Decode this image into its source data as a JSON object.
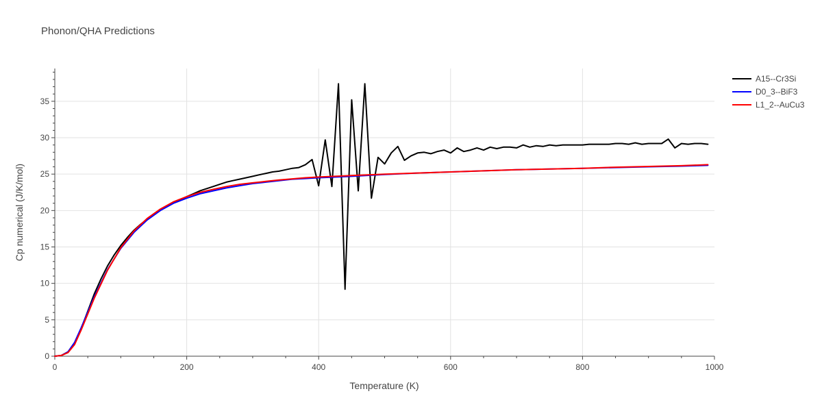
{
  "chart_data": {
    "type": "line",
    "title": "Phonon/QHA Predictions",
    "xlabel": "Temperature (K)",
    "ylabel": "Cp numerical (J/K/mol)",
    "xlim": [
      0,
      1000
    ],
    "ylim": [
      0,
      39.5
    ],
    "xticks": [
      0,
      200,
      400,
      600,
      800,
      1000
    ],
    "yticks": [
      0,
      5,
      10,
      15,
      20,
      25,
      30,
      35
    ],
    "grid": true,
    "legend": "top-right",
    "series": [
      {
        "name": "A15--Cr3Si",
        "color": "#000000",
        "x": [
          0,
          10,
          20,
          30,
          40,
          50,
          60,
          70,
          80,
          90,
          100,
          110,
          120,
          130,
          140,
          150,
          160,
          170,
          180,
          190,
          200,
          210,
          220,
          230,
          240,
          250,
          260,
          270,
          280,
          290,
          300,
          310,
          320,
          330,
          340,
          350,
          360,
          370,
          380,
          390,
          400,
          410,
          420,
          430,
          440,
          450,
          460,
          470,
          480,
          490,
          500,
          510,
          520,
          530,
          540,
          550,
          560,
          570,
          580,
          590,
          600,
          610,
          620,
          630,
          640,
          650,
          660,
          670,
          680,
          690,
          700,
          710,
          720,
          730,
          740,
          750,
          760,
          770,
          780,
          790,
          800,
          810,
          820,
          830,
          840,
          850,
          860,
          870,
          880,
          890,
          900,
          910,
          920,
          930,
          940,
          950,
          960,
          970,
          980,
          990
        ],
        "y": [
          0,
          0.1,
          0.6,
          1.8,
          3.8,
          6.2,
          8.6,
          10.6,
          12.4,
          13.9,
          15.2,
          16.3,
          17.3,
          18.1,
          18.8,
          19.5,
          20.1,
          20.6,
          21.1,
          21.5,
          21.9,
          22.3,
          22.7,
          23.0,
          23.3,
          23.6,
          23.9,
          24.1,
          24.3,
          24.5,
          24.7,
          24.9,
          25.1,
          25.3,
          25.4,
          25.6,
          25.8,
          25.9,
          26.3,
          27.0,
          23.4,
          29.7,
          23.3,
          37.4,
          9.2,
          35.2,
          22.7,
          37.4,
          21.7,
          27.3,
          26.4,
          27.9,
          28.8,
          26.9,
          27.5,
          27.9,
          28.0,
          27.8,
          28.1,
          28.3,
          27.9,
          28.6,
          28.1,
          28.3,
          28.6,
          28.3,
          28.7,
          28.5,
          28.7,
          28.7,
          28.6,
          29.0,
          28.7,
          28.9,
          28.8,
          29.0,
          28.9,
          29.0,
          29.0,
          29.0,
          29.0,
          29.1,
          29.1,
          29.1,
          29.1,
          29.2,
          29.2,
          29.1,
          29.3,
          29.1,
          29.2,
          29.2,
          29.2,
          29.8,
          28.6,
          29.2,
          29.1,
          29.2,
          29.2,
          29.1
        ]
      },
      {
        "name": "D0_3--BiF3",
        "color": "#0000ff",
        "x": [
          0,
          10,
          20,
          30,
          40,
          60,
          80,
          100,
          120,
          140,
          160,
          180,
          200,
          220,
          240,
          260,
          280,
          300,
          320,
          340,
          360,
          380,
          400,
          450,
          500,
          550,
          600,
          650,
          700,
          750,
          800,
          850,
          900,
          950,
          990
        ],
        "y": [
          0,
          0.1,
          0.6,
          1.9,
          3.9,
          8.2,
          11.9,
          14.8,
          17.0,
          18.7,
          20.0,
          21.0,
          21.7,
          22.3,
          22.7,
          23.1,
          23.4,
          23.7,
          23.9,
          24.1,
          24.3,
          24.4,
          24.5,
          24.7,
          24.95,
          25.15,
          25.3,
          25.45,
          25.6,
          25.7,
          25.8,
          25.9,
          26.0,
          26.1,
          26.2
        ]
      },
      {
        "name": "L1_2--AuCu3",
        "color": "#ff0000",
        "x": [
          0,
          10,
          20,
          30,
          40,
          60,
          80,
          100,
          120,
          140,
          160,
          180,
          200,
          220,
          240,
          260,
          280,
          300,
          320,
          340,
          360,
          380,
          400,
          450,
          500,
          550,
          600,
          650,
          700,
          750,
          800,
          850,
          900,
          950,
          990
        ],
        "y": [
          0,
          0.1,
          0.5,
          1.6,
          3.6,
          8.0,
          11.8,
          14.9,
          17.2,
          18.9,
          20.2,
          21.2,
          21.9,
          22.5,
          22.9,
          23.3,
          23.6,
          23.8,
          24.0,
          24.2,
          24.35,
          24.5,
          24.6,
          24.8,
          25.0,
          25.15,
          25.3,
          25.45,
          25.6,
          25.7,
          25.8,
          25.95,
          26.05,
          26.15,
          26.3
        ]
      }
    ]
  }
}
